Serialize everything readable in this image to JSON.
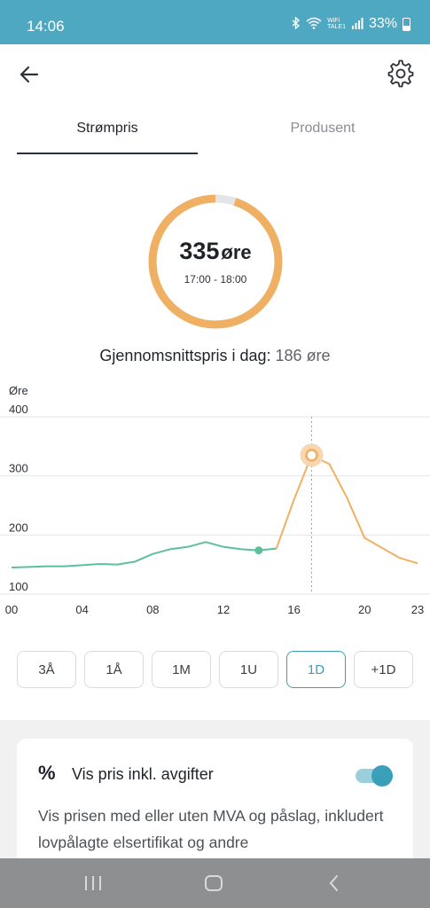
{
  "status": {
    "time": "14:06",
    "battery": "33%",
    "wifi_line1": "WiFi",
    "wifi_line2": "TALE1"
  },
  "tabs": [
    {
      "label": "Strømpris",
      "active": true
    },
    {
      "label": "Produsent",
      "active": false
    }
  ],
  "current_price": {
    "value": "335",
    "unit": "øre",
    "time_range": "17:00 - 18:00",
    "ring_fill_fraction": 0.95
  },
  "average": {
    "label": "Gjennomsnittspris i dag:",
    "value": "186 øre"
  },
  "chart_data": {
    "type": "line",
    "ylabel": "Øre",
    "yticks": [
      100,
      200,
      300,
      400
    ],
    "ylim": [
      100,
      400
    ],
    "xticks": [
      "00",
      "04",
      "08",
      "12",
      "16",
      "20",
      "23"
    ],
    "xlim": [
      0,
      23
    ],
    "grid": true,
    "series": [
      {
        "x": [
          0,
          1,
          2,
          3,
          4,
          5,
          6,
          7,
          8,
          9,
          10,
          11,
          12,
          13,
          14,
          15,
          16,
          17,
          18,
          19,
          20,
          21,
          22,
          23
        ],
        "values": [
          145,
          146,
          147,
          147,
          149,
          151,
          150,
          155,
          168,
          176,
          180,
          188,
          180,
          176,
          174,
          177,
          260,
          335,
          320,
          263,
          195,
          178,
          161,
          152
        ]
      }
    ],
    "current_hour": 17,
    "marker_now_x": 14,
    "colors": {
      "past": "#5cc19b",
      "future": "#f0b063",
      "highlight_ring": "#f7d6b0"
    }
  },
  "range_buttons": [
    {
      "label": "3Å",
      "active": false
    },
    {
      "label": "1Å",
      "active": false
    },
    {
      "label": "1M",
      "active": false
    },
    {
      "label": "1U",
      "active": false
    },
    {
      "label": "1D",
      "active": true
    },
    {
      "label": "+1D",
      "active": false
    }
  ],
  "settings_card": {
    "icon": "percent-icon",
    "title": "Vis pris inkl. avgifter",
    "toggle_on": true,
    "description": "Vis prisen med eller uten MVA og påslag, inkludert lovpålagte elsertifikat og andre"
  },
  "colors": {
    "accent": "#3a9fb8",
    "status_bar": "#4ea8c1",
    "ring": "#f0b063",
    "ring_empty": "#e4e5e8"
  }
}
